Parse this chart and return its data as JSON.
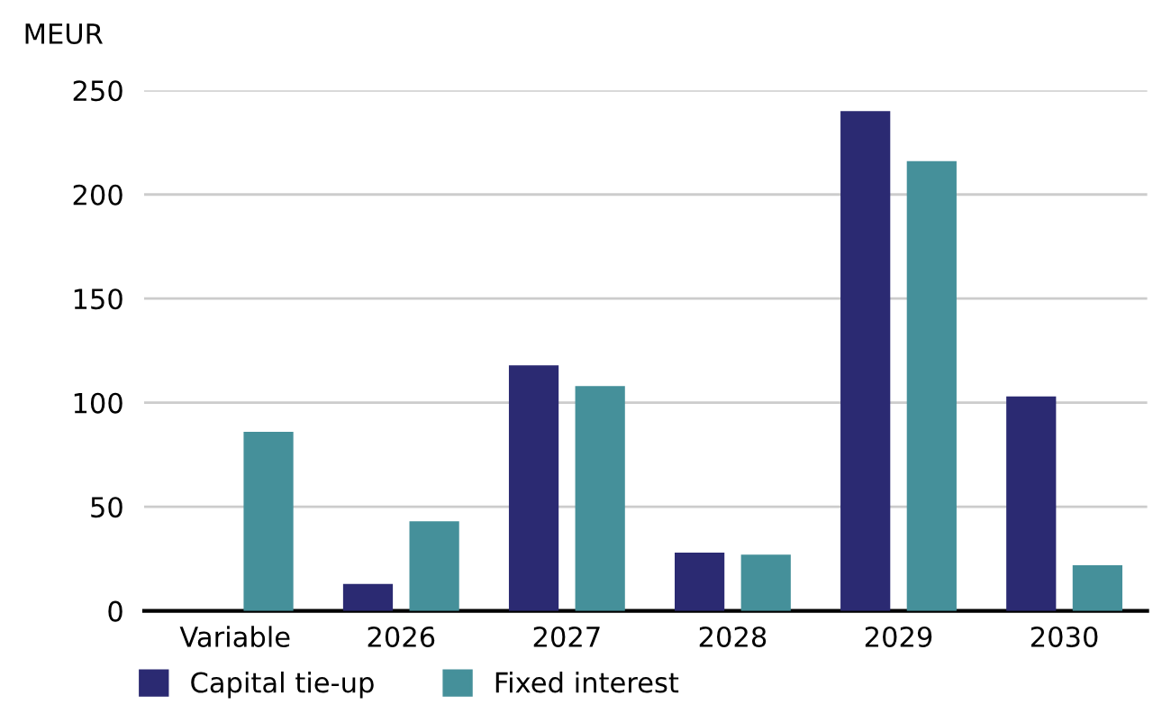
{
  "chart_data": {
    "type": "bar",
    "ylabel": "MEUR",
    "categories": [
      "Variable",
      "2026",
      "2027",
      "2028",
      "2029",
      "2030"
    ],
    "series": [
      {
        "name": "Capital tie-up",
        "color": "#2b2a72",
        "values": [
          null,
          13,
          118,
          28,
          240,
          103
        ]
      },
      {
        "name": "Fixed interest",
        "color": "#45909a",
        "values": [
          86,
          43,
          108,
          27,
          216,
          22
        ]
      }
    ],
    "ylim": [
      0,
      250
    ],
    "yticks": [
      0,
      50,
      100,
      150,
      200,
      250
    ],
    "grid": "y",
    "legend": "bottom left"
  }
}
